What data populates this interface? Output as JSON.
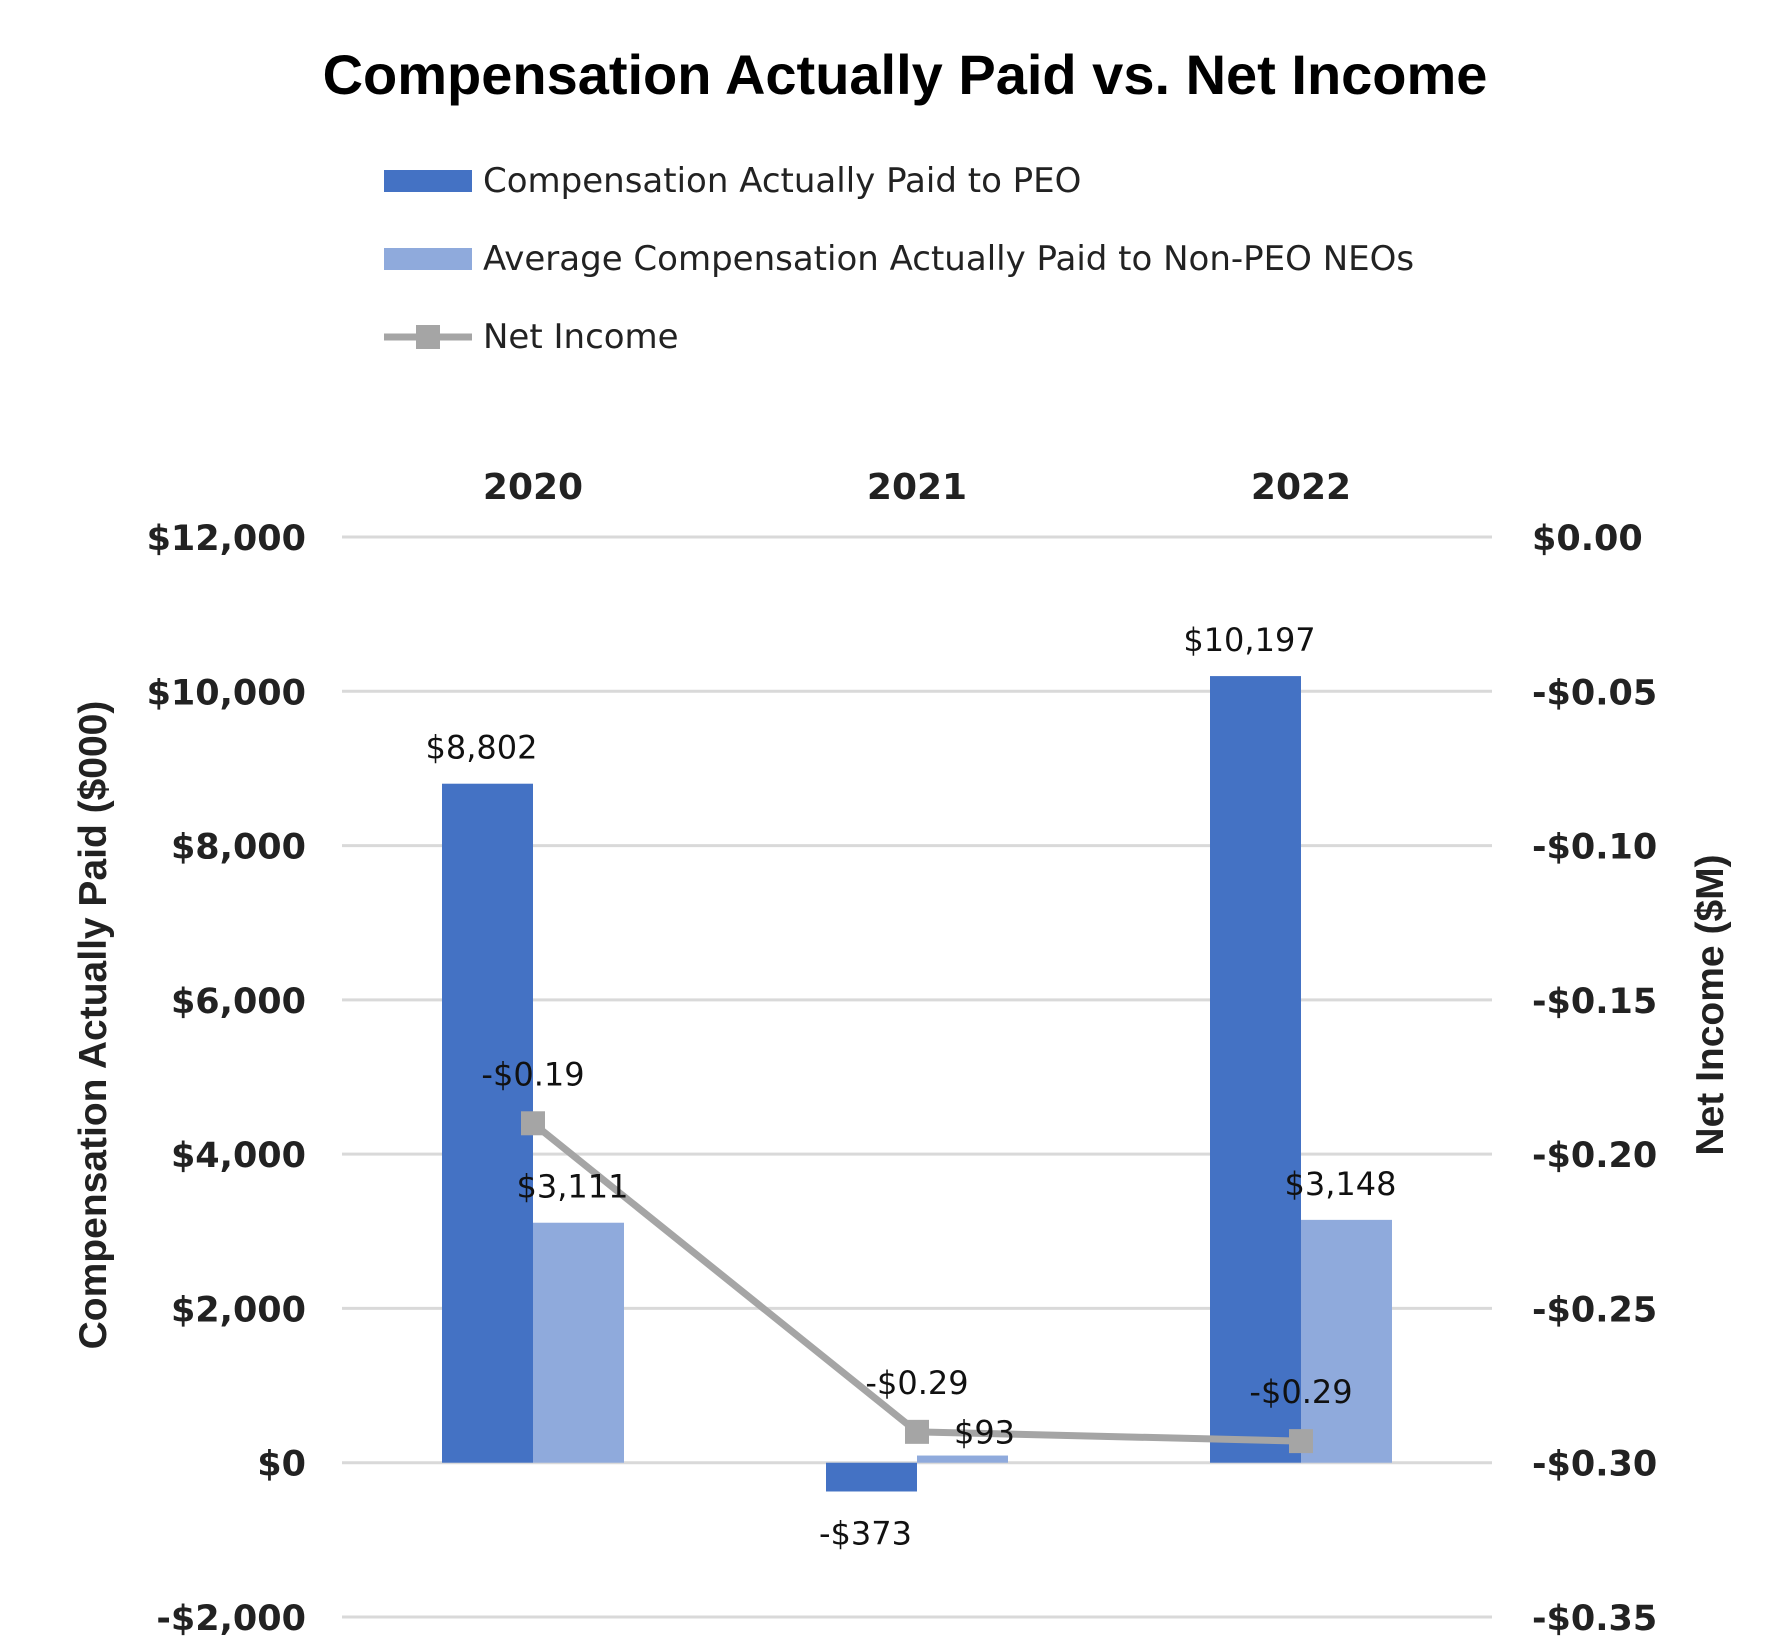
{
  "chart_data": {
    "type": "bar",
    "title": "Compensation Actually Paid vs. Net Income",
    "categories": [
      "2020",
      "2021",
      "2022"
    ],
    "series": [
      {
        "name": "Compensation Actually Paid to PEO",
        "kind": "bar",
        "axis": "left",
        "color": "#4472c4",
        "values": [
          8802,
          -373,
          10197
        ],
        "labels": [
          "$8,802",
          "-$373",
          "$10,197"
        ]
      },
      {
        "name": "Average Compensation Actually Paid to Non-PEO NEOs",
        "kind": "bar",
        "axis": "left",
        "color": "#8faadc",
        "values": [
          3111,
          93,
          3148
        ],
        "labels": [
          "$3,111",
          "$93",
          "$3,148"
        ]
      },
      {
        "name": "Net Income",
        "kind": "line",
        "axis": "right",
        "color": "#a5a5a5",
        "values": [
          -0.19,
          -0.29,
          -0.293
        ],
        "labels": [
          "-$0.19",
          "-$0.29",
          "-$0.29"
        ]
      }
    ],
    "ylabel": "Compensation Actually Paid ($000)",
    "y2label": "Net Income ($M)",
    "ylim": [
      -2000,
      12000
    ],
    "y2lim": [
      -0.35,
      0
    ],
    "yticks": [
      12000,
      10000,
      8000,
      6000,
      4000,
      2000,
      0,
      -2000
    ],
    "ytick_labels": [
      "$12,000",
      "$10,000",
      "$8,000",
      "$6,000",
      "$4,000",
      "$2,000",
      "$0",
      "-$2,000"
    ],
    "y2ticks": [
      0,
      -0.05,
      -0.1,
      -0.15,
      -0.2,
      -0.25,
      -0.3,
      -0.35
    ],
    "y2tick_labels": [
      "$0.00",
      "-$0.05",
      "-$0.10",
      "-$0.15",
      "-$0.20",
      "-$0.25",
      "-$0.30",
      "-$0.35"
    ],
    "grid": true,
    "legend": "top",
    "gridline_color": "#d9d9d9"
  }
}
